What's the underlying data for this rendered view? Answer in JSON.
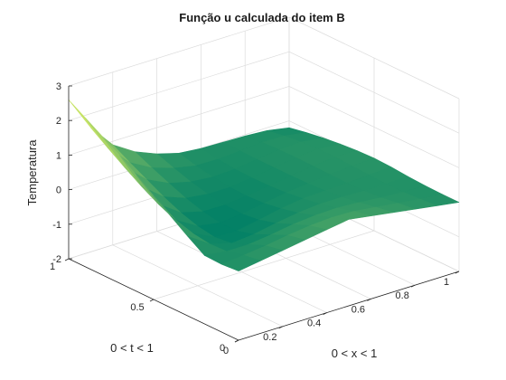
{
  "chart_data": {
    "type": "surface3d",
    "title": "Função u calculada do item B",
    "xlabel": "0 < x < 1",
    "ylabel": "0 < t < 1",
    "zlabel": "Temperatura",
    "xlim": [
      0,
      1
    ],
    "ylim": [
      0,
      1
    ],
    "zlim": [
      -2,
      3
    ],
    "xticks": [
      "0",
      "0.2",
      "0.4",
      "0.6",
      "0.8",
      "1"
    ],
    "yticks": [
      "0",
      "0.5",
      "1"
    ],
    "zticks": [
      "-2",
      "-1",
      "0",
      "1",
      "2",
      "3"
    ],
    "grid": true,
    "colormap": "summer",
    "colors": {
      "colormap_low": "#008066",
      "colormap_high": "#ffff66",
      "axis": "#262626",
      "grid": "#dcdcdc"
    },
    "surface": {
      "x": [
        0,
        0.1,
        0.2,
        0.3,
        0.4,
        0.5,
        0.6,
        0.7,
        0.8,
        0.9,
        1
      ],
      "t": [
        0,
        0.1,
        0.2,
        0.3,
        0.4,
        0.5,
        0.6,
        0.7,
        0.8,
        0.9,
        1
      ],
      "u": [
        [
          0,
          0.1,
          0.2,
          0.3,
          0.4,
          0.5,
          0.4,
          0.3,
          0.2,
          0.1,
          0
        ],
        [
          -0.04,
          0.02,
          0.1,
          0.2,
          0.28,
          0.32,
          0.3,
          0.22,
          0.14,
          0.06,
          0
        ],
        [
          -0.02,
          -0.1,
          -0.1,
          -0.02,
          0.08,
          0.14,
          0.16,
          0.12,
          0.06,
          0.02,
          0.01
        ],
        [
          0.3,
          -0.12,
          -0.3,
          -0.24,
          -0.12,
          -0.02,
          0.04,
          0.04,
          0.02,
          0.02,
          0.04
        ],
        [
          0.65,
          -0.05,
          -0.36,
          -0.38,
          -0.26,
          -0.13,
          -0.04,
          -0.01,
          0.01,
          0.04,
          0.08
        ],
        [
          1.0,
          0.1,
          -0.28,
          -0.38,
          -0.32,
          -0.21,
          -0.11,
          -0.04,
          0.02,
          0.07,
          0.1
        ],
        [
          1.35,
          0.32,
          -0.12,
          -0.29,
          -0.3,
          -0.24,
          -0.14,
          -0.05,
          0.03,
          0.09,
          0.08
        ],
        [
          1.7,
          0.6,
          0.1,
          -0.14,
          -0.22,
          -0.22,
          -0.15,
          -0.05,
          0.04,
          0.09,
          0.04
        ],
        [
          2.0,
          0.92,
          0.36,
          0.06,
          -0.1,
          -0.16,
          -0.13,
          -0.05,
          0.03,
          0.06,
          -0.02
        ],
        [
          2.3,
          1.25,
          0.62,
          0.27,
          0.06,
          -0.07,
          -0.08,
          -0.04,
          0.01,
          0.0,
          -0.1
        ],
        [
          2.6,
          1.6,
          0.9,
          0.5,
          0.24,
          0.06,
          0.0,
          -0.02,
          -0.04,
          -0.08,
          -0.2
        ]
      ]
    }
  }
}
